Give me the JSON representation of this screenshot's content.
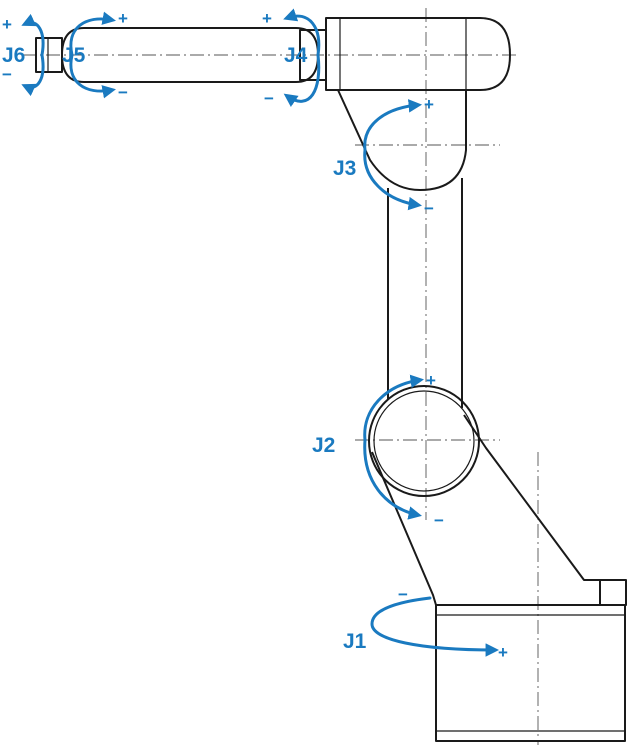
{
  "diagram": {
    "accent_color": "#1a7ac0",
    "line_color": "#1a1a1a",
    "joints": [
      {
        "label": "J1",
        "positive": "+",
        "negative": "−"
      },
      {
        "label": "J2",
        "positive": "+",
        "negative": "−"
      },
      {
        "label": "J3",
        "positive": "+",
        "negative": "−"
      },
      {
        "label": "J4",
        "positive": "+",
        "negative": "−"
      },
      {
        "label": "J5",
        "positive": "+",
        "negative": "−"
      },
      {
        "label": "J6",
        "positive": "+",
        "negative": "−"
      }
    ]
  }
}
